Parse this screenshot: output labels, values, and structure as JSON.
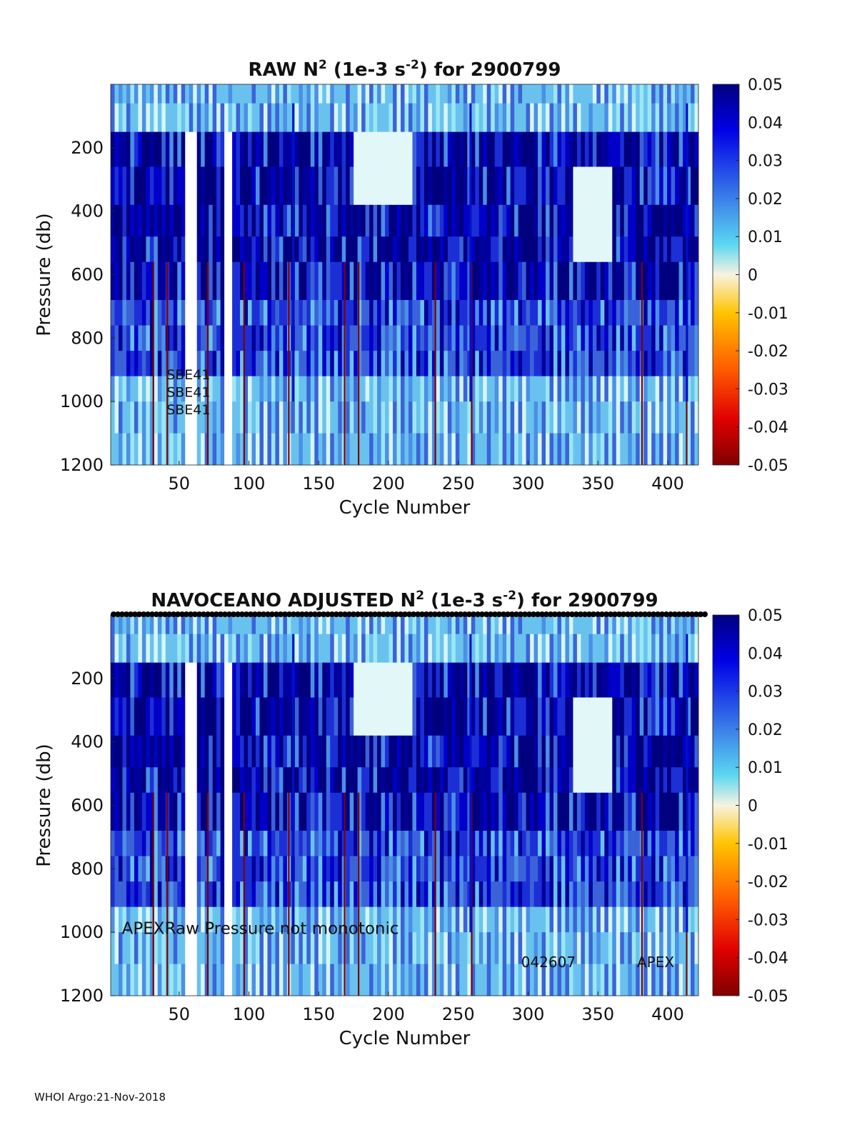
{
  "footer": "WHOI Argo:21-Nov-2018",
  "colorbar": {
    "min": -0.05,
    "max": 0.05,
    "tick_labels": [
      "0.05",
      "0.04",
      "0.03",
      "0.02",
      "0.01",
      "0",
      "-0.01",
      "-0.02",
      "-0.03",
      "-0.04",
      "-0.05"
    ]
  },
  "chart_data": [
    {
      "type": "heatmap",
      "title_prefix": "RAW N",
      "title_sup1": "2",
      "title_mid": " (1e-3 s",
      "title_sup2": "-2",
      "title_suffix": ") for 2900799",
      "xlabel": "Cycle Number",
      "ylabel": "Pressure (db)",
      "xlim": [
        1,
        422
      ],
      "ylim": [
        1200,
        0
      ],
      "xticks": [
        50,
        100,
        150,
        200,
        250,
        300,
        350,
        400
      ],
      "yticks": [
        200,
        400,
        600,
        800,
        1000,
        1200
      ],
      "annotations": [
        {
          "text": "SBE41",
          "x": 41,
          "y": 930,
          "size": "small"
        },
        {
          "text": "SBE41",
          "x": 41,
          "y": 985,
          "size": "small"
        },
        {
          "text": "SBE41",
          "x": 41,
          "y": 1040,
          "size": "small"
        }
      ]
    },
    {
      "type": "heatmap",
      "title_prefix": "NAVOCEANO  ADJUSTED N",
      "title_sup1": "2",
      "title_mid": " (1e-3 s",
      "title_sup2": "-2",
      "title_suffix": ") for 2900799",
      "xlabel": "Cycle Number",
      "ylabel": "Pressure (db)",
      "xlim": [
        1,
        422
      ],
      "ylim": [
        1200,
        0
      ],
      "xticks": [
        50,
        100,
        150,
        200,
        250,
        300,
        350,
        400
      ],
      "yticks": [
        200,
        400,
        600,
        800,
        1000,
        1200
      ],
      "annotations": [
        {
          "text": "APEXRaw Pressure not monotonic",
          "x": 9,
          "y": 1005,
          "size": "large"
        },
        {
          "text": "042607",
          "x": 295,
          "y": 1110,
          "size": "medium"
        },
        {
          "text": "APEX",
          "x": 378,
          "y": 1110,
          "size": "medium"
        }
      ]
    }
  ]
}
